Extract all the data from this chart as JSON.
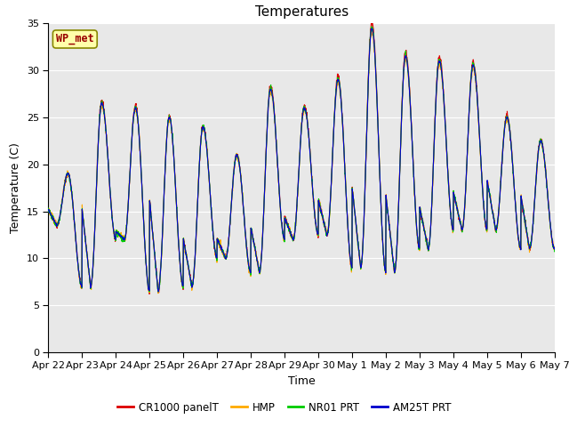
{
  "title": "Temperatures",
  "xlabel": "Time",
  "ylabel": "Temperature (C)",
  "ylim": [
    0,
    35
  ],
  "yticks": [
    0,
    5,
    10,
    15,
    20,
    25,
    30,
    35
  ],
  "x_labels": [
    "Apr 22",
    "Apr 23",
    "Apr 24",
    "Apr 25",
    "Apr 26",
    "Apr 27",
    "Apr 28",
    "Apr 29",
    "Apr 30",
    "May 1",
    "May 2",
    "May 3",
    "May 4",
    "May 5",
    "May 6",
    "May 7"
  ],
  "station_label": "WP_met",
  "colors": {
    "CR1000_panelT": "#dd0000",
    "HMP": "#ffaa00",
    "NR01_PRT": "#00cc00",
    "AM25T_PRT": "#0000cc"
  },
  "legend_labels": [
    "CR1000 panelT",
    "HMP",
    "NR01 PRT",
    "AM25T PRT"
  ],
  "plot_bg_color": "#e8e8e8",
  "fig_bg_color": "#ffffff",
  "title_fontsize": 11,
  "label_fontsize": 9,
  "tick_fontsize": 8,
  "day_maxes": [
    19,
    26.5,
    26,
    25,
    24,
    21,
    28,
    26,
    29,
    34.5,
    31.5,
    31,
    30.5,
    25,
    22.5
  ],
  "day_mins": [
    13.5,
    7,
    12,
    6.5,
    7,
    10,
    8.5,
    12,
    12.5,
    9,
    8.5,
    11,
    13,
    13,
    11
  ]
}
